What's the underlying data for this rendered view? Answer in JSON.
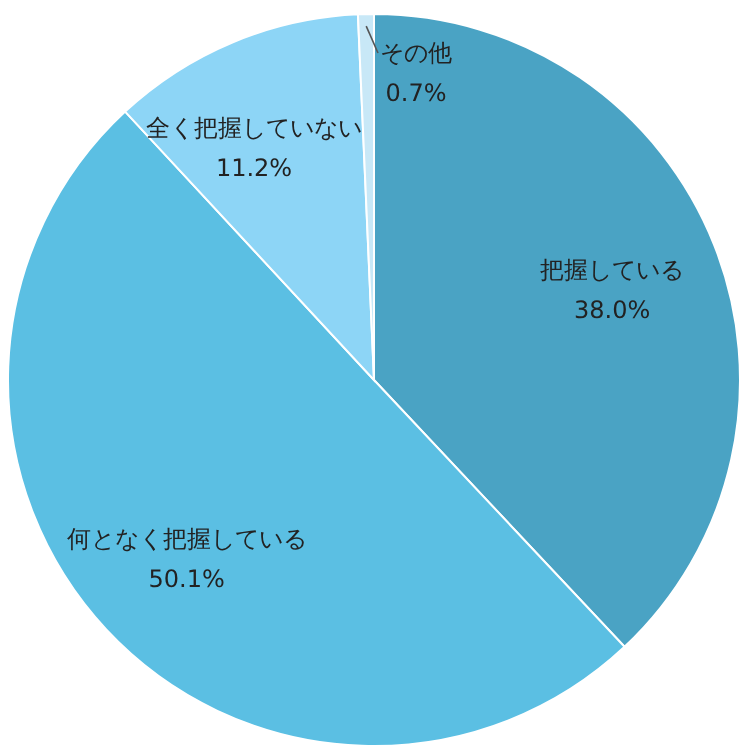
{
  "chart_data": {
    "type": "pie",
    "categories": [
      "把握している",
      "何となく把握している",
      "全く把握していない",
      "その他"
    ],
    "values": [
      38.0,
      50.1,
      11.2,
      0.7
    ],
    "colors": [
      "#4aa3c4",
      "#5bbfe3",
      "#8dd5f6",
      "#c8e8f7"
    ],
    "value_labels": [
      "38.0%",
      "50.1%",
      "11.2%",
      "0.7%"
    ]
  }
}
